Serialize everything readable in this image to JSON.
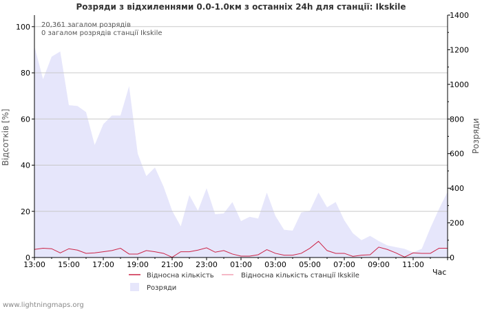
{
  "colors": {
    "background": "#ffffff",
    "grid": "#c8c8c8",
    "area_fill": "#e6e6fb",
    "red": "#cc2244",
    "pink": "#f2a0b4",
    "text": "#333333"
  },
  "chart_data": {
    "type": "area",
    "title": "Розряди з відхиленнями 0.0-1.0км з останніх 24h для станції: Ikskile",
    "info_lines": [
      "20,361 загалом розрядів",
      "0 загалом розрядів станції Ikskile"
    ],
    "ylabel_left": "Відсотків   [%]",
    "ylabel_right": "Розряди",
    "xlabel": "Час",
    "ylim_left": [
      0,
      105
    ],
    "ylim_right": [
      0,
      1400
    ],
    "left_ticks": [
      "0",
      "20",
      "40",
      "60",
      "80",
      "100"
    ],
    "right_ticks": [
      "0",
      "200",
      "400",
      "600",
      "800",
      "1000",
      "1200",
      "1400"
    ],
    "x_ticks": [
      "13:00",
      "15:00",
      "17:00",
      "19:00",
      "21:00",
      "23:00",
      "01:00",
      "03:00",
      "05:00",
      "07:00",
      "09:00",
      "11:00"
    ],
    "series": [
      {
        "name": "Розряди",
        "axis": "right",
        "values": [
          1220,
          1030,
          1160,
          1190,
          880,
          875,
          840,
          650,
          770,
          820,
          820,
          990,
          600,
          470,
          520,
          410,
          270,
          180,
          360,
          270,
          400,
          250,
          255,
          320,
          210,
          235,
          225,
          375,
          240,
          160,
          155,
          260,
          270,
          375,
          290,
          320,
          215,
          140,
          100,
          125,
          95,
          70,
          60,
          50,
          30,
          50,
          170,
          280,
          380
        ]
      },
      {
        "name": "Відносна кількість",
        "axis": "left",
        "values": [
          3.5,
          4.0,
          3.8,
          2.0,
          3.8,
          3.2,
          1.8,
          2.0,
          2.5,
          3.0,
          4.0,
          1.5,
          1.5,
          3.0,
          2.5,
          1.8,
          0.1,
          2.5,
          2.5,
          3.2,
          4.2,
          2.3,
          3.0,
          1.5,
          0.6,
          0.6,
          1.2,
          3.4,
          1.8,
          1.0,
          1.0,
          1.8,
          4.0,
          7.0,
          3.0,
          1.8,
          1.8,
          0.5,
          1.0,
          1.2,
          4.5,
          3.5,
          2.0,
          0.2,
          2.0,
          1.8,
          1.8,
          4.0,
          4.0
        ]
      },
      {
        "name": "Відносна кількість станції Ikskile",
        "axis": "left",
        "values": [
          0,
          0,
          0,
          0,
          0,
          0,
          0,
          0,
          0,
          0,
          0,
          0,
          0,
          0,
          0,
          0,
          0,
          0,
          0,
          0,
          0,
          0,
          0,
          0,
          0,
          0,
          0,
          0,
          0,
          0,
          0,
          0,
          0,
          0,
          0,
          0,
          0,
          0,
          0,
          0,
          0,
          0,
          0,
          0,
          0,
          0,
          0,
          0,
          0
        ]
      }
    ],
    "legend": [
      "Відносна кількість",
      "Відносна кількість станції Ikskile",
      "Розряди"
    ]
  },
  "footer": "www.lightningmaps.org"
}
